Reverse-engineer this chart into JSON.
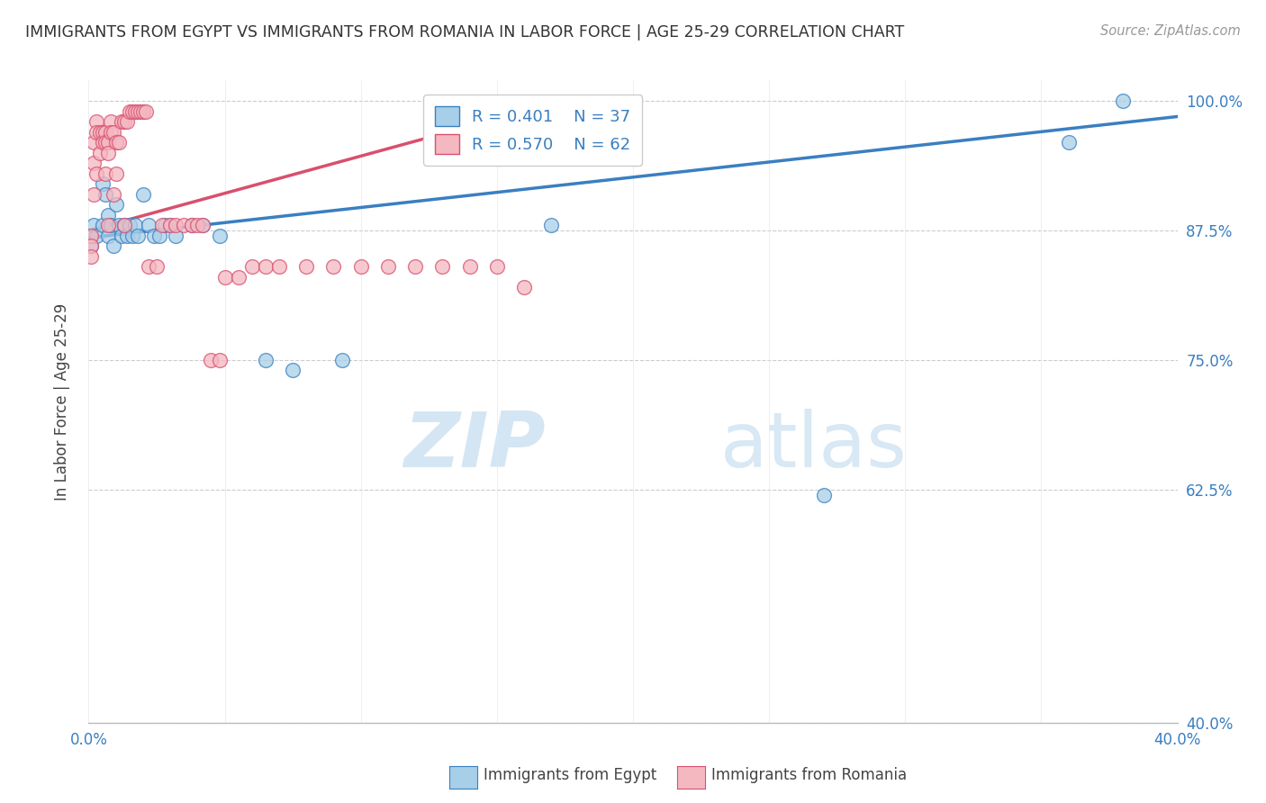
{
  "title": "IMMIGRANTS FROM EGYPT VS IMMIGRANTS FROM ROMANIA IN LABOR FORCE | AGE 25-29 CORRELATION CHART",
  "source": "Source: ZipAtlas.com",
  "ylabel": "In Labor Force | Age 25-29",
  "xlim": [
    0.0,
    0.4
  ],
  "ylim": [
    0.4,
    1.02
  ],
  "yticks": [
    0.4,
    0.625,
    0.75,
    0.875,
    1.0
  ],
  "ytick_labels": [
    "40.0%",
    "62.5%",
    "75.0%",
    "87.5%",
    "100.0%"
  ],
  "xticks": [
    0.0,
    0.05,
    0.1,
    0.15,
    0.2,
    0.25,
    0.3,
    0.35,
    0.4
  ],
  "xtick_labels": [
    "0.0%",
    "",
    "",
    "",
    "",
    "",
    "",
    "",
    "40.0%"
  ],
  "legend_r_egypt": "R = 0.401",
  "legend_n_egypt": "N = 37",
  "legend_r_romania": "R = 0.570",
  "legend_n_romania": "N = 62",
  "color_egypt": "#a8cfe8",
  "color_romania": "#f4b8c1",
  "color_trendline_egypt": "#3a7fc1",
  "color_trendline_romania": "#d94f6e",
  "color_axis_labels": "#3a7fc1",
  "color_title": "#333333",
  "watermark_zip": "ZIP",
  "watermark_atlas": "atlas",
  "egypt_x": [
    0.001,
    0.001,
    0.002,
    0.003,
    0.005,
    0.005,
    0.006,
    0.007,
    0.007,
    0.008,
    0.009,
    0.01,
    0.011,
    0.012,
    0.013,
    0.014,
    0.015,
    0.016,
    0.017,
    0.018,
    0.02,
    0.022,
    0.024,
    0.026,
    0.028,
    0.03,
    0.032,
    0.038,
    0.042,
    0.048,
    0.065,
    0.075,
    0.093,
    0.38,
    0.36,
    0.27,
    0.17
  ],
  "egypt_y": [
    0.87,
    0.86,
    0.88,
    0.87,
    0.92,
    0.88,
    0.91,
    0.89,
    0.87,
    0.88,
    0.86,
    0.9,
    0.88,
    0.87,
    0.88,
    0.87,
    0.88,
    0.87,
    0.88,
    0.87,
    0.91,
    0.88,
    0.87,
    0.87,
    0.88,
    0.88,
    0.87,
    0.88,
    0.88,
    0.87,
    0.75,
    0.74,
    0.75,
    1.0,
    0.96,
    0.62,
    0.88
  ],
  "romania_x": [
    0.001,
    0.001,
    0.001,
    0.002,
    0.002,
    0.002,
    0.003,
    0.003,
    0.003,
    0.004,
    0.004,
    0.005,
    0.005,
    0.006,
    0.006,
    0.006,
    0.007,
    0.007,
    0.007,
    0.008,
    0.008,
    0.009,
    0.009,
    0.01,
    0.01,
    0.011,
    0.012,
    0.013,
    0.013,
    0.014,
    0.015,
    0.016,
    0.017,
    0.018,
    0.019,
    0.02,
    0.021,
    0.022,
    0.025,
    0.027,
    0.03,
    0.032,
    0.035,
    0.038,
    0.04,
    0.042,
    0.045,
    0.048,
    0.05,
    0.055,
    0.06,
    0.065,
    0.07,
    0.08,
    0.09,
    0.1,
    0.11,
    0.12,
    0.13,
    0.14,
    0.15,
    0.16
  ],
  "romania_y": [
    0.87,
    0.86,
    0.85,
    0.96,
    0.94,
    0.91,
    0.98,
    0.97,
    0.93,
    0.97,
    0.95,
    0.97,
    0.96,
    0.97,
    0.96,
    0.93,
    0.96,
    0.95,
    0.88,
    0.98,
    0.97,
    0.97,
    0.91,
    0.96,
    0.93,
    0.96,
    0.98,
    0.98,
    0.88,
    0.98,
    0.99,
    0.99,
    0.99,
    0.99,
    0.99,
    0.99,
    0.99,
    0.84,
    0.84,
    0.88,
    0.88,
    0.88,
    0.88,
    0.88,
    0.88,
    0.88,
    0.75,
    0.75,
    0.83,
    0.83,
    0.84,
    0.84,
    0.84,
    0.84,
    0.84,
    0.84,
    0.84,
    0.84,
    0.84,
    0.84,
    0.84,
    0.82
  ]
}
